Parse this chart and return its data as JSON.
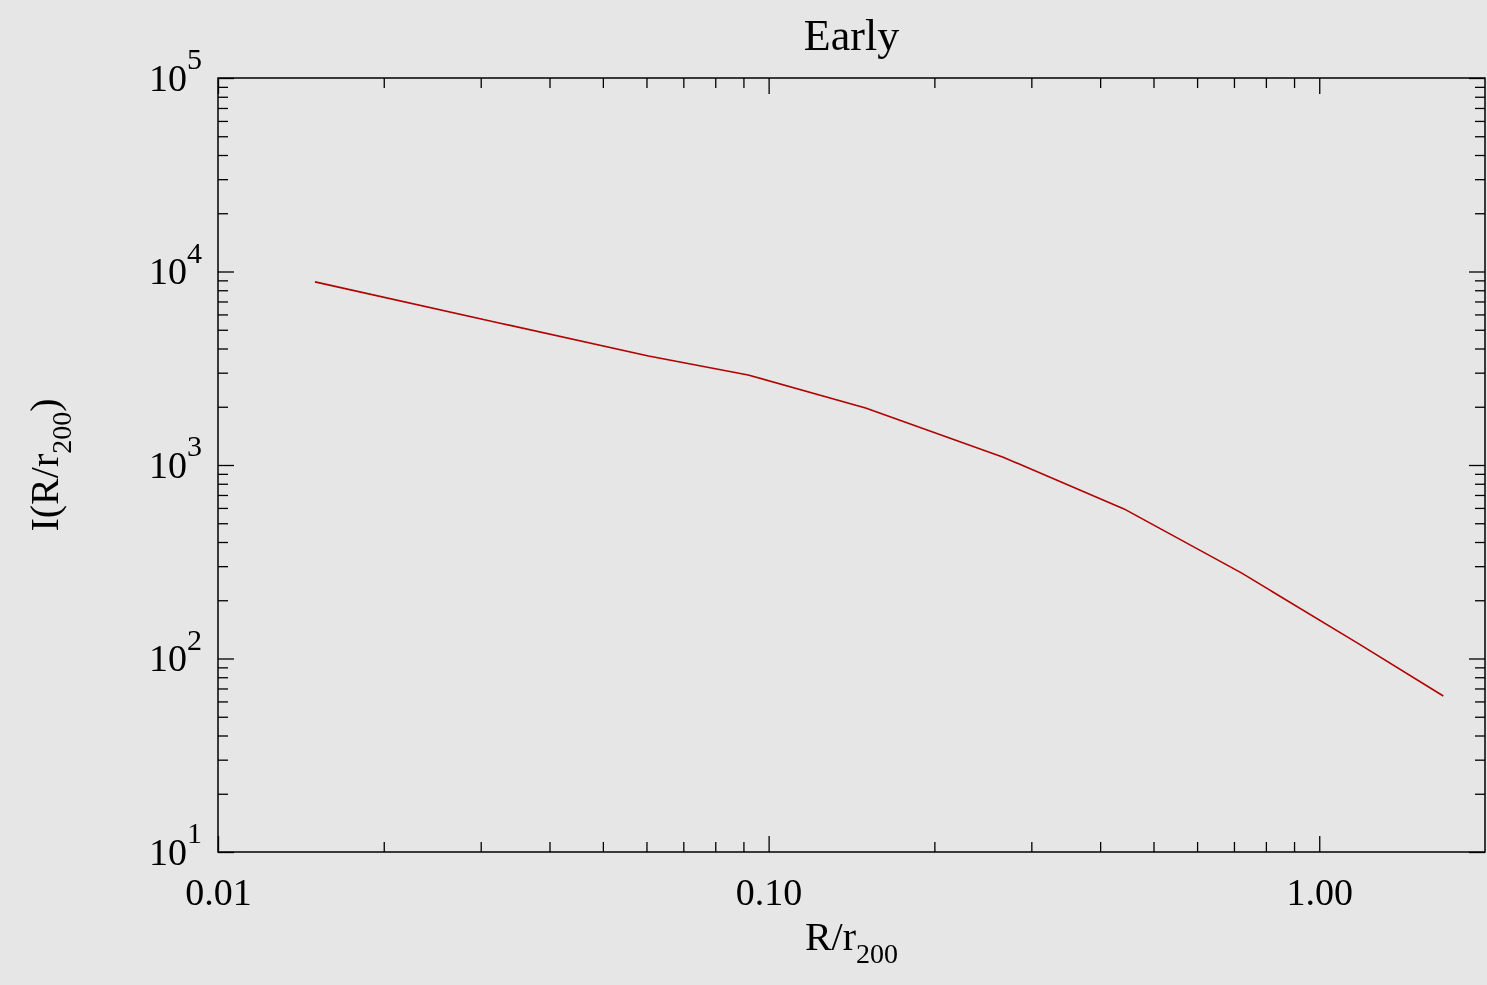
{
  "chart_data": {
    "type": "line",
    "title": "Early",
    "xlabel": "R/r$_{200}$",
    "ylabel": "I(R/r$_{200}$)",
    "log": "xy",
    "grid": false,
    "marker": "none",
    "line_style": "solid",
    "xlim": [
      0.01,
      2
    ],
    "ylim": [
      10,
      100000
    ],
    "xticks": [
      {
        "value": 0.01,
        "label": "0.01"
      },
      {
        "value": 0.02,
        "label": null
      },
      {
        "value": 0.03,
        "label": null
      },
      {
        "value": 0.04,
        "label": null
      },
      {
        "value": 0.05,
        "label": null
      },
      {
        "value": 0.06,
        "label": null
      },
      {
        "value": 0.07,
        "label": null
      },
      {
        "value": 0.08,
        "label": null
      },
      {
        "value": 0.09,
        "label": null
      },
      {
        "value": 0.1,
        "label": "0.10"
      },
      {
        "value": 0.2,
        "label": null
      },
      {
        "value": 0.3,
        "label": null
      },
      {
        "value": 0.4,
        "label": null
      },
      {
        "value": 0.5,
        "label": null
      },
      {
        "value": 0.6,
        "label": null
      },
      {
        "value": 0.7,
        "label": null
      },
      {
        "value": 0.8,
        "label": null
      },
      {
        "value": 0.9,
        "label": null
      },
      {
        "value": 1,
        "label": "1.00"
      }
    ],
    "yticks": [
      {
        "value": 10,
        "label": "10$^{1}$"
      },
      {
        "value": 20,
        "label": null
      },
      {
        "value": 30,
        "label": null
      },
      {
        "value": 40,
        "label": null
      },
      {
        "value": 50,
        "label": null
      },
      {
        "value": 60,
        "label": null
      },
      {
        "value": 70,
        "label": null
      },
      {
        "value": 80,
        "label": null
      },
      {
        "value": 90,
        "label": null
      },
      {
        "value": 100,
        "label": "10$^{2}$"
      },
      {
        "value": 200,
        "label": null
      },
      {
        "value": 300,
        "label": null
      },
      {
        "value": 400,
        "label": null
      },
      {
        "value": 500,
        "label": null
      },
      {
        "value": 600,
        "label": null
      },
      {
        "value": 700,
        "label": null
      },
      {
        "value": 800,
        "label": null
      },
      {
        "value": 900,
        "label": null
      },
      {
        "value": 1000,
        "label": "10$^{3}$"
      },
      {
        "value": 2000,
        "label": null
      },
      {
        "value": 3000,
        "label": null
      },
      {
        "value": 4000,
        "label": null
      },
      {
        "value": 5000,
        "label": null
      },
      {
        "value": 6000,
        "label": null
      },
      {
        "value": 7000,
        "label": null
      },
      {
        "value": 8000,
        "label": null
      },
      {
        "value": 9000,
        "label": null
      },
      {
        "value": 10000,
        "label": "10$^{4}$"
      },
      {
        "value": 20000,
        "label": null
      },
      {
        "value": 30000,
        "label": null
      },
      {
        "value": 40000,
        "label": null
      },
      {
        "value": 50000,
        "label": null
      },
      {
        "value": 60000,
        "label": null
      },
      {
        "value": 70000,
        "label": null
      },
      {
        "value": 80000,
        "label": null
      },
      {
        "value": 90000,
        "label": null
      },
      {
        "value": 100000,
        "label": "10$^{5}$"
      }
    ],
    "series": [
      {
        "color": "#b00000",
        "x": [
          0.015,
          0.0324,
          0.0605,
          0.0918,
          0.15,
          0.266,
          0.442,
          0.722,
          1.18,
          1.68
        ],
        "values": [
          8840,
          5420,
          3660,
          2920,
          1970,
          1100,
          593,
          277,
          119,
          64
        ]
      }
    ]
  }
}
